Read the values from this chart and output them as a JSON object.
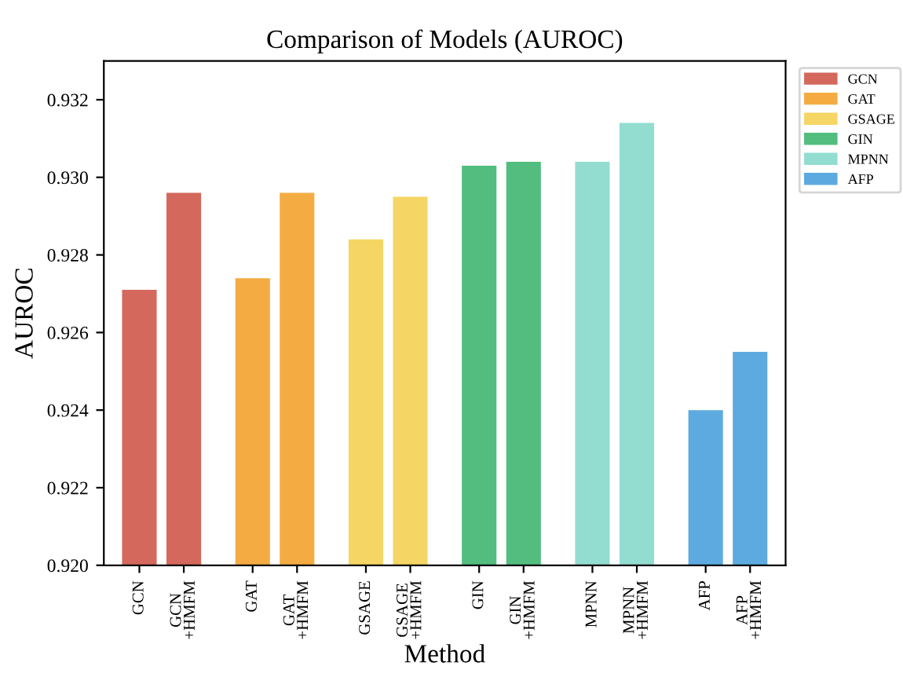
{
  "chart_data": {
    "type": "bar",
    "title": "Comparison of Models (AUROC)",
    "xlabel": "Method",
    "ylabel": "AUROC",
    "categories": [
      "GCN",
      "GCN\n+HMFM",
      "GAT",
      "GAT\n+HMFM",
      "GSAGE",
      "GSAGE\n+HMFM",
      "GIN",
      "GIN\n+HMFM",
      "MPNN",
      "MPNN\n+HMFM",
      "AFP",
      "AFP\n+HMFM"
    ],
    "series": [
      {
        "name": "GCN",
        "color": "#d4685c",
        "values": [
          0.9271,
          0.9296,
          null,
          null,
          null,
          null,
          null,
          null,
          null,
          null,
          null,
          null
        ]
      },
      {
        "name": "GAT",
        "color": "#f4ac42",
        "values": [
          null,
          null,
          0.9274,
          0.9296,
          null,
          null,
          null,
          null,
          null,
          null,
          null,
          null
        ]
      },
      {
        "name": "GSAGE",
        "color": "#f5d665",
        "values": [
          null,
          null,
          null,
          null,
          0.9284,
          0.9295,
          null,
          null,
          null,
          null,
          null,
          null
        ]
      },
      {
        "name": "GIN",
        "color": "#52bd7f",
        "values": [
          null,
          null,
          null,
          null,
          null,
          null,
          0.9303,
          0.9304,
          null,
          null,
          null,
          null
        ]
      },
      {
        "name": "MPNN",
        "color": "#92ddd0",
        "values": [
          null,
          null,
          null,
          null,
          null,
          null,
          null,
          null,
          0.9304,
          0.9314,
          null,
          null
        ]
      },
      {
        "name": "AFP",
        "color": "#5daae0",
        "values": [
          null,
          null,
          null,
          null,
          null,
          null,
          null,
          null,
          null,
          null,
          0.924,
          0.9255
        ]
      }
    ],
    "ylim": [
      0.92,
      0.933
    ],
    "yticks": [
      {
        "value": 0.92,
        "label": "0.920"
      },
      {
        "value": 0.922,
        "label": "0.922"
      },
      {
        "value": 0.924,
        "label": "0.924"
      },
      {
        "value": 0.926,
        "label": "0.926"
      },
      {
        "value": 0.928,
        "label": "0.928"
      },
      {
        "value": 0.93,
        "label": "0.930"
      },
      {
        "value": 0.932,
        "label": "0.932"
      }
    ],
    "grid": false,
    "legend": "top right"
  }
}
